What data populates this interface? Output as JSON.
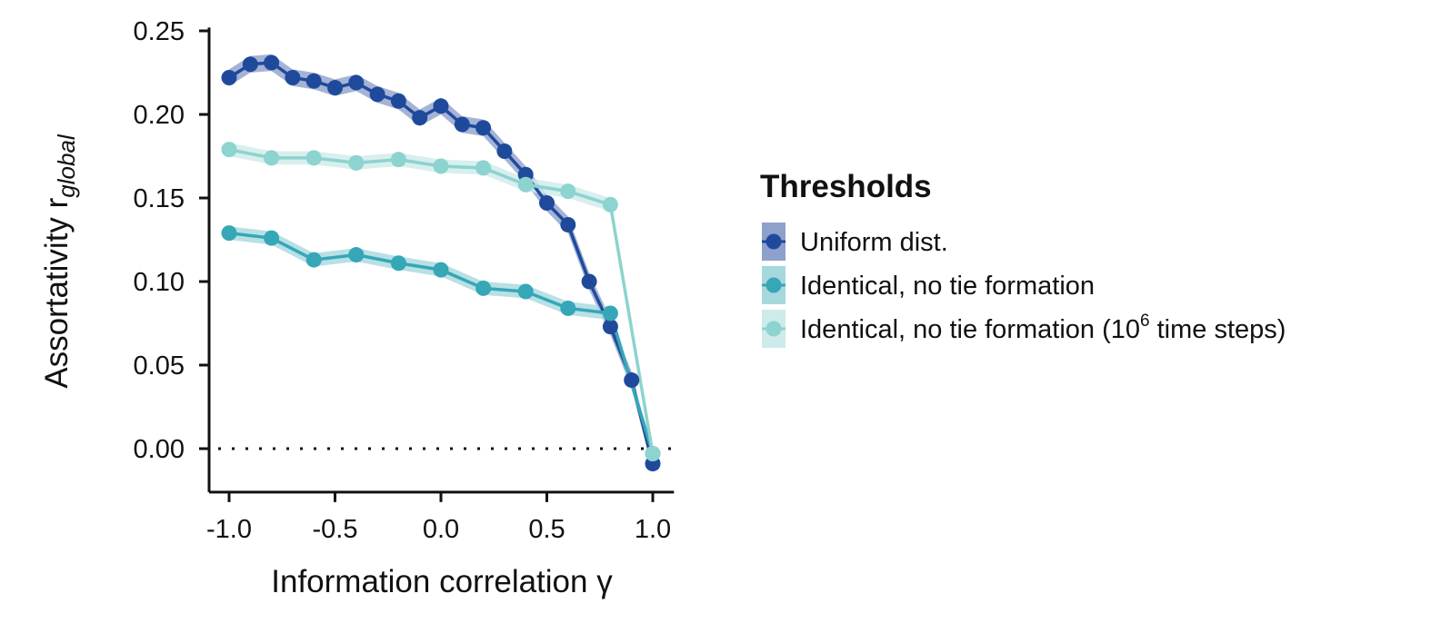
{
  "chart_data": {
    "type": "line",
    "xlabel": "Information correlation γ",
    "ylabel": "Assortativity r",
    "ylabel_subscript": "global",
    "xlim": [
      -1.1,
      1.1
    ],
    "ylim": [
      -0.026,
      0.252
    ],
    "x_ticks": [
      -1.0,
      -0.5,
      0.0,
      0.5,
      1.0
    ],
    "x_tick_labels": [
      "-1.0",
      "-0.5",
      "0.0",
      "0.5",
      "1.0"
    ],
    "y_ticks": [
      0.0,
      0.05,
      0.1,
      0.15,
      0.2,
      0.25
    ],
    "y_tick_labels": [
      "0.00",
      "0.05",
      "0.10",
      "0.15",
      "0.20",
      "0.25"
    ],
    "reference_line": {
      "y": 0.0,
      "style": "dotted"
    },
    "grid": false,
    "legend": {
      "title": "Thresholds",
      "placement": "right",
      "entries": [
        {
          "label": "Uniform dist."
        },
        {
          "label": "Identical, no tie formation"
        },
        {
          "label_prefix": "Identical, no tie formation (10",
          "label_sup": "6",
          "label_suffix": " time steps)"
        }
      ]
    },
    "series": [
      {
        "color": "#1f4a9c",
        "band_color": "#8ea0cc",
        "x": [
          -1.0,
          -0.9,
          -0.8,
          -0.7,
          -0.6,
          -0.5,
          -0.4,
          -0.3,
          -0.2,
          -0.1,
          0.0,
          0.1,
          0.2,
          0.3,
          0.4,
          0.5,
          0.6,
          0.7,
          0.8,
          0.9,
          1.0
        ],
        "y": [
          0.222,
          0.23,
          0.231,
          0.222,
          0.22,
          0.216,
          0.219,
          0.212,
          0.208,
          0.198,
          0.205,
          0.194,
          0.192,
          0.178,
          0.164,
          0.147,
          0.134,
          0.1,
          0.073,
          0.041,
          -0.009
        ],
        "band": 0.005
      },
      {
        "color": "#35a7b7",
        "band_color": "#a6d8de",
        "x": [
          -1.0,
          -0.8,
          -0.6,
          -0.4,
          -0.2,
          0.0,
          0.2,
          0.4,
          0.6,
          0.8,
          1.0
        ],
        "y": [
          0.129,
          0.126,
          0.113,
          0.116,
          0.111,
          0.107,
          0.096,
          0.094,
          0.084,
          0.081,
          -0.003
        ],
        "band": 0.004
      },
      {
        "color": "#8dd3cf",
        "band_color": "#cdebea",
        "x": [
          -1.0,
          -0.8,
          -0.6,
          -0.4,
          -0.2,
          0.0,
          0.2,
          0.4,
          0.6,
          0.8,
          1.0
        ],
        "y": [
          0.179,
          0.174,
          0.174,
          0.171,
          0.173,
          0.169,
          0.168,
          0.158,
          0.154,
          0.146,
          -0.003
        ],
        "band": 0.004
      }
    ]
  }
}
